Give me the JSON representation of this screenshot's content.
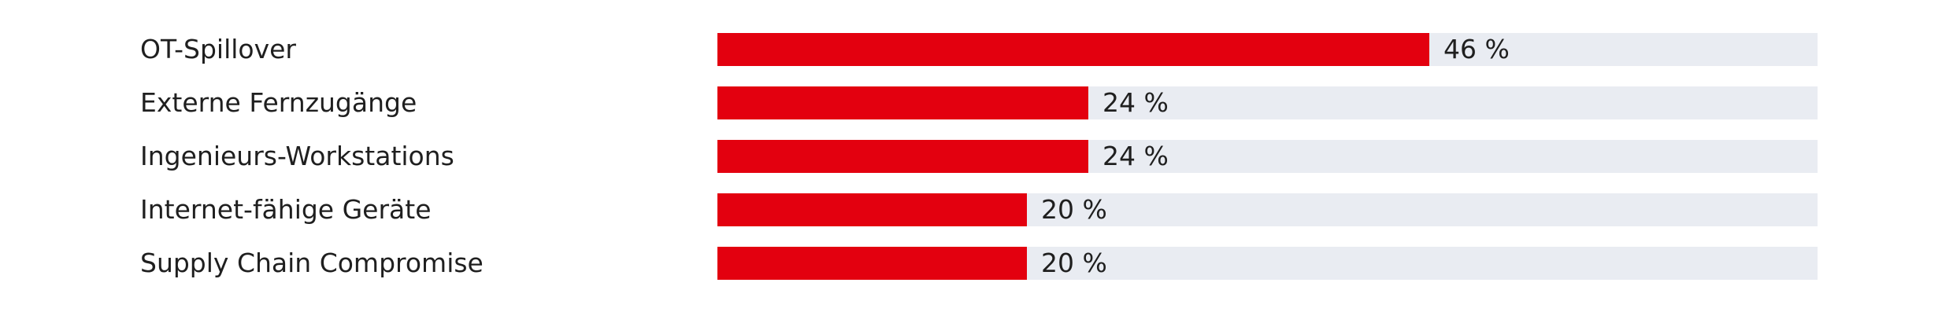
{
  "chart_data": {
    "type": "bar",
    "orientation": "horizontal",
    "title": "",
    "xlabel": "",
    "ylabel": "",
    "xlim": [
      0,
      100
    ],
    "unit": "%",
    "grid": false,
    "legend": "none",
    "colors": {
      "bar": "#e3000f",
      "track": "#e9ecf2",
      "text": "#1f1f1f"
    },
    "categories": [
      "OT-Spillover",
      "Externe Fernzugänge",
      "Ingenieurs-Workstations",
      "Internet-fähige Geräte",
      "Supply Chain Compromise"
    ],
    "values": [
      46,
      24,
      24,
      20,
      20
    ],
    "value_labels": [
      "46 %",
      "24 %",
      "24 %",
      "20 %",
      "20 %"
    ]
  }
}
